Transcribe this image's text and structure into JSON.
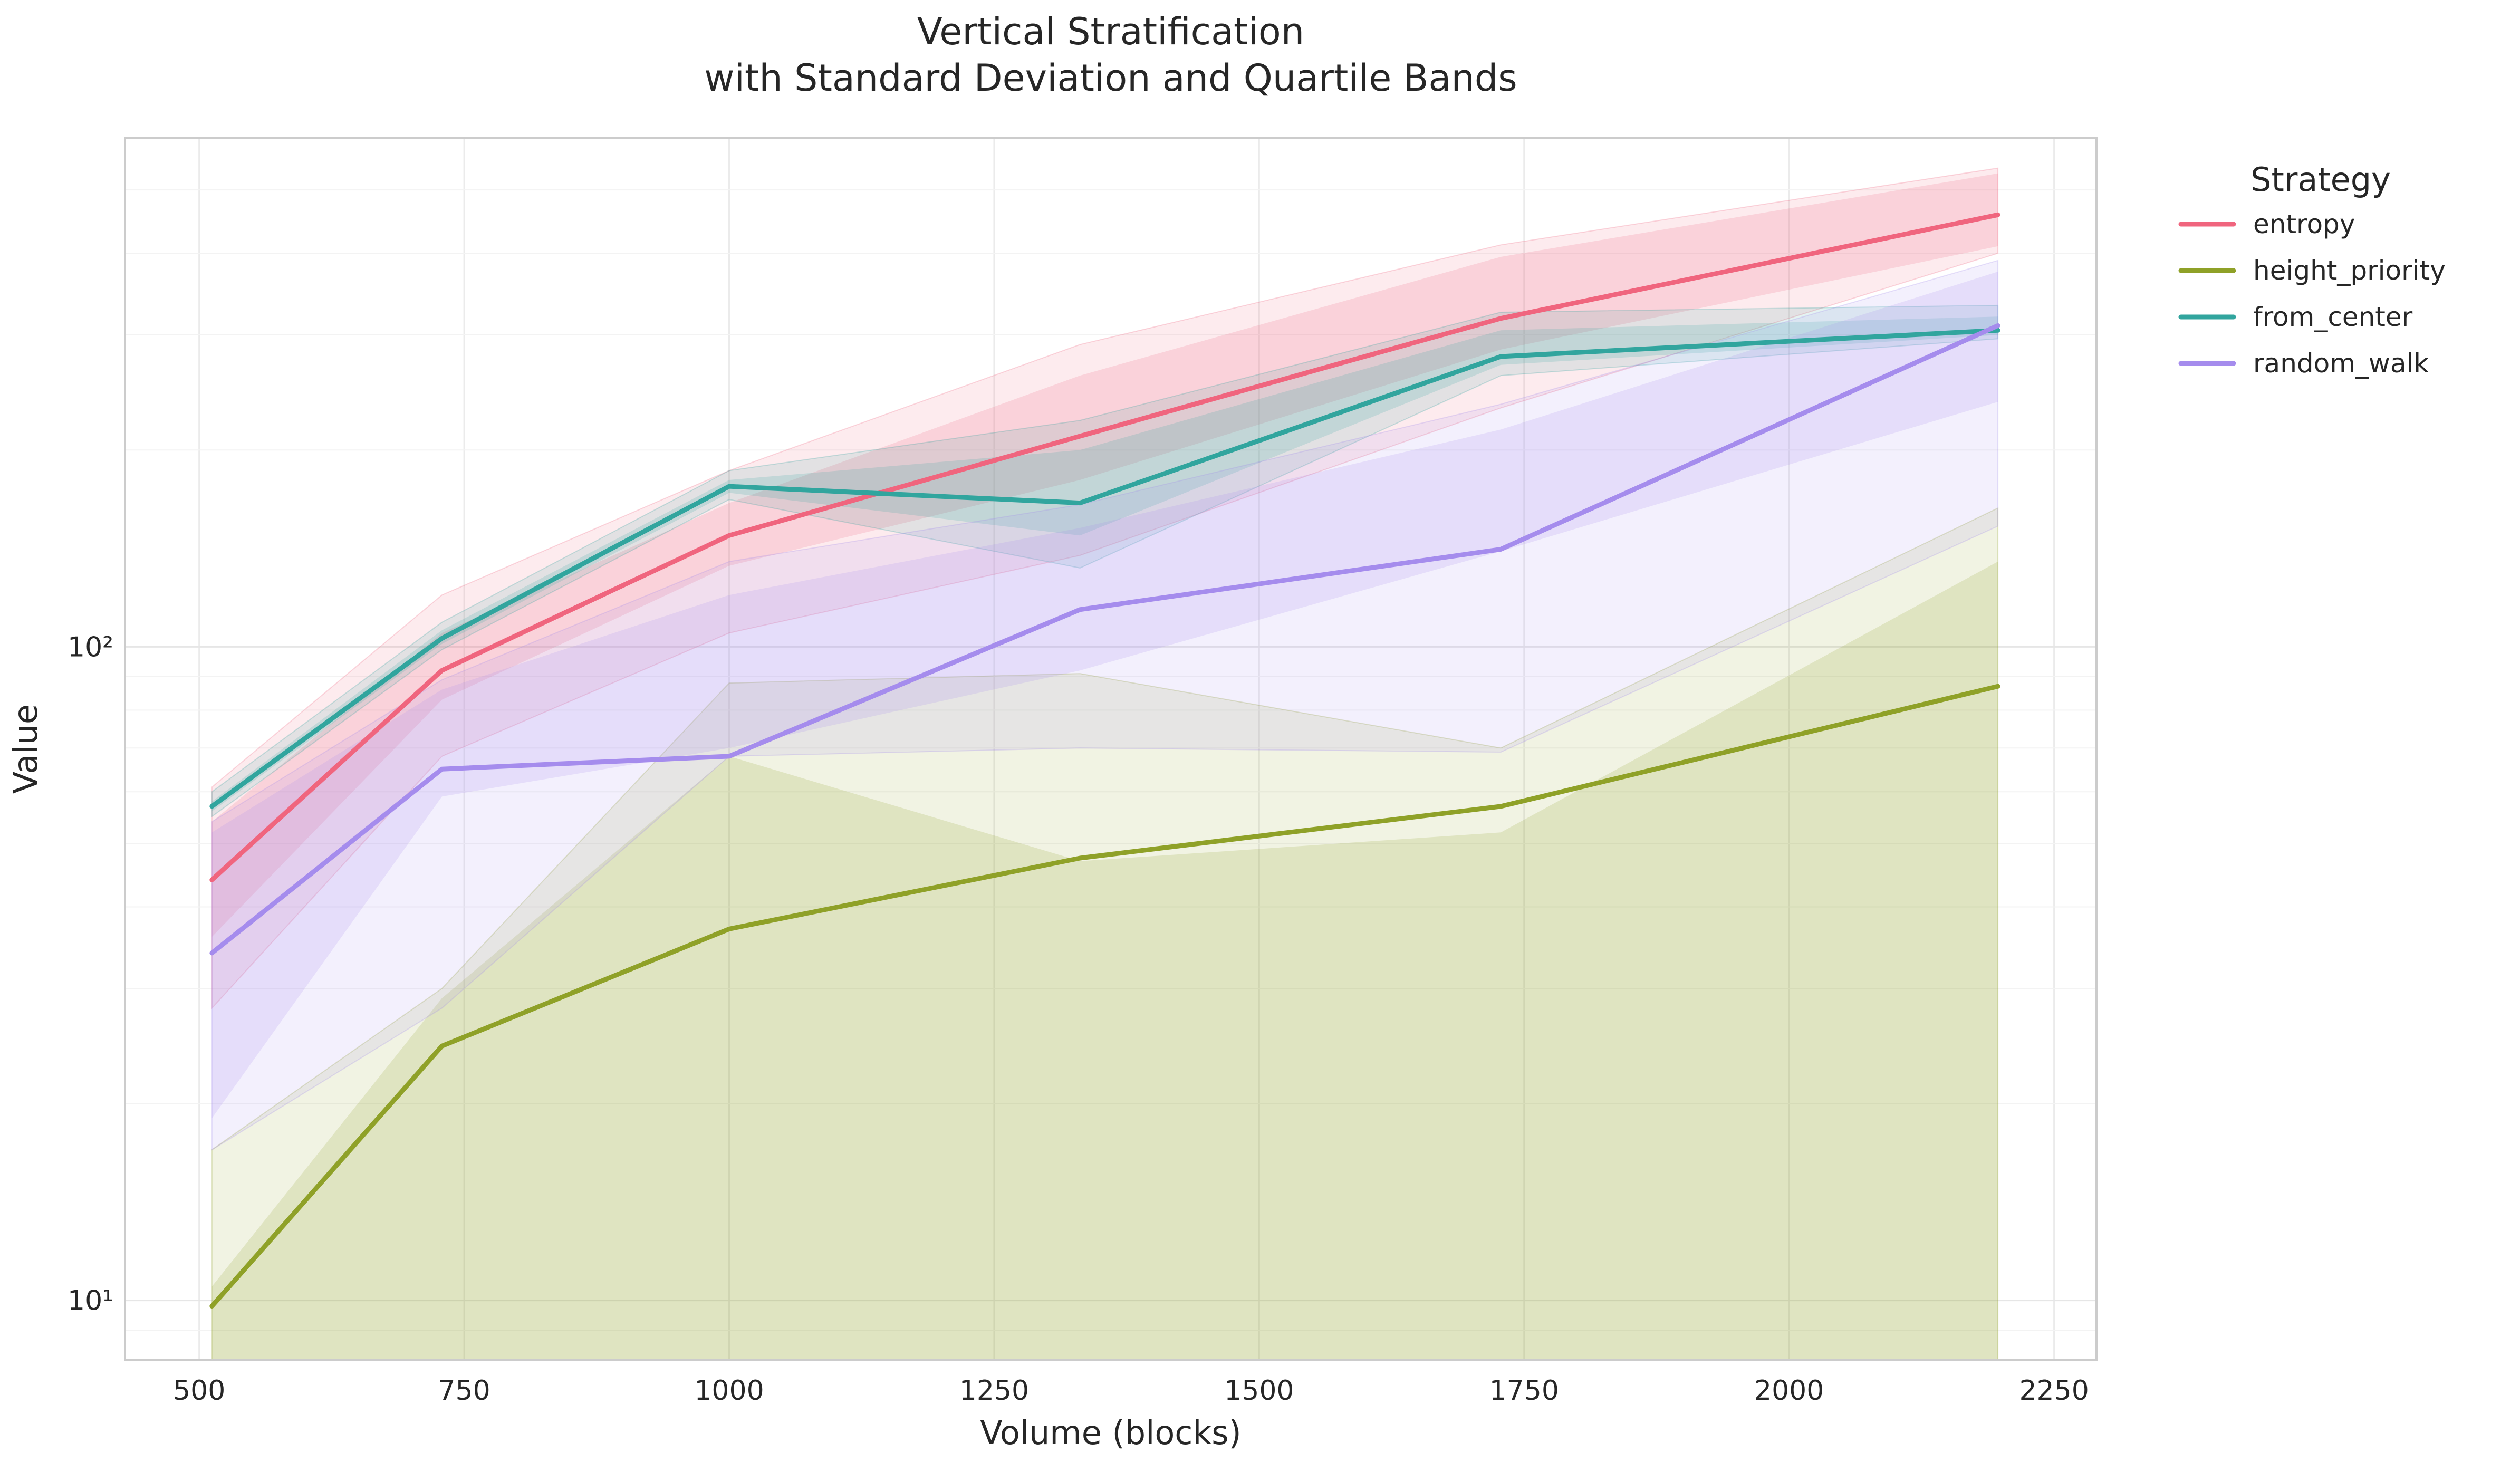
{
  "chart_data": {
    "type": "line",
    "title_line1": "Vertical Stratification",
    "title_line2": "with Standard Deviation and Quartile Bands",
    "xlabel": "Volume (blocks)",
    "ylabel": "Value",
    "xlim": [
      430,
      2290
    ],
    "ylim": [
      8.1,
      600
    ],
    "yscale": "log",
    "grid": true,
    "x_ticks": [
      500,
      750,
      1000,
      1250,
      1500,
      1750,
      2000,
      2250
    ],
    "x_tick_labels": [
      "500",
      "750",
      "1000",
      "1250",
      "1500",
      "1750",
      "2000",
      "2250"
    ],
    "y_ticks": [
      10,
      100
    ],
    "y_tick_labels": [
      "10¹",
      "10²"
    ],
    "legend": {
      "title": "Strategy",
      "placement": "outside-right"
    },
    "x": [
      512,
      729,
      1000,
      1331,
      1728,
      2197
    ],
    "series": [
      {
        "name": "entropy",
        "color": "#f0657e",
        "values": [
          44,
          92,
          148,
          210,
          318,
          458
        ],
        "std_band": {
          "lower": [
            28,
            68,
            105,
            138,
            232,
            400
          ],
          "upper": [
            61,
            120,
            186,
            290,
            412,
            540
          ]
        },
        "quartile_band": {
          "lower": [
            36,
            83,
            133,
            180,
            285,
            410
          ],
          "upper": [
            54,
            105,
            166,
            260,
            395,
            530
          ]
        }
      },
      {
        "name": "height_priority",
        "color": "#8fa128",
        "values": [
          9.8,
          24.5,
          37,
          47.5,
          57,
          87
        ],
        "std_band": {
          "lower": [
            0.1,
            0.1,
            0.1,
            0.1,
            0.1,
            0.1
          ],
          "upper": [
            17,
            30,
            88,
            91,
            70,
            163
          ]
        },
        "quartile_band": {
          "lower": [
            0.1,
            0.1,
            0.1,
            0.1,
            0.1,
            0.1
          ],
          "upper": [
            10.5,
            29,
            68,
            47,
            52,
            135
          ]
        }
      },
      {
        "name": "from_center",
        "color": "#31a59e",
        "values": [
          57,
          103,
          176,
          166,
          278,
          305
        ],
        "std_band": {
          "lower": [
            55,
            99,
            168,
            132,
            260,
            296
          ],
          "upper": [
            60,
            109,
            186,
            222,
            325,
            333
          ]
        },
        "quartile_band": {
          "lower": [
            56,
            101,
            172,
            148,
            270,
            300
          ],
          "upper": [
            58,
            106,
            180,
            200,
            305,
            320
          ]
        }
      },
      {
        "name": "random_walk",
        "color": "#a58ced",
        "values": [
          34,
          65,
          68,
          114,
          141,
          310
        ],
        "std_band": {
          "lower": [
            17,
            28,
            68,
            70,
            69,
            153
          ],
          "upper": [
            54,
            89,
            135,
            165,
            235,
            390
          ]
        },
        "quartile_band": {
          "lower": [
            19,
            59,
            70,
            92,
            140,
            237
          ],
          "upper": [
            52,
            86,
            120,
            152,
            215,
            375
          ]
        }
      }
    ]
  }
}
